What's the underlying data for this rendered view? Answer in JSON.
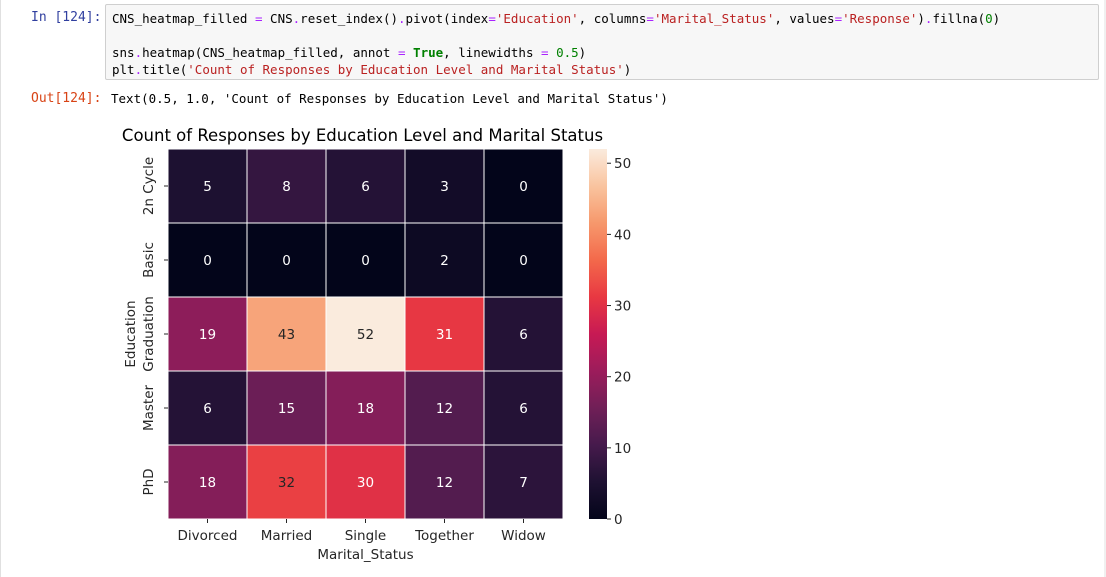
{
  "cell": {
    "in_prompt": "In [124]:",
    "out_prompt": "Out[124]:",
    "code_lines": [
      [
        {
          "t": "CNS_heatmap_filled ",
          "c": ""
        },
        {
          "t": "=",
          "c": "op"
        },
        {
          "t": " CNS",
          "c": ""
        },
        {
          "t": ".",
          "c": "op"
        },
        {
          "t": "reset_index()",
          "c": ""
        },
        {
          "t": ".",
          "c": "op"
        },
        {
          "t": "pivot(index",
          "c": ""
        },
        {
          "t": "=",
          "c": "op"
        },
        {
          "t": "'Education'",
          "c": "str"
        },
        {
          "t": ", columns",
          "c": ""
        },
        {
          "t": "=",
          "c": "op"
        },
        {
          "t": "'Marital_Status'",
          "c": "str"
        },
        {
          "t": ", values",
          "c": ""
        },
        {
          "t": "=",
          "c": "op"
        },
        {
          "t": "'Response'",
          "c": "str"
        },
        {
          "t": ")",
          "c": ""
        },
        {
          "t": ".",
          "c": "op"
        },
        {
          "t": "fillna(",
          "c": ""
        },
        {
          "t": "0",
          "c": "num"
        },
        {
          "t": ")",
          "c": ""
        }
      ],
      [],
      [
        {
          "t": "sns",
          "c": ""
        },
        {
          "t": ".",
          "c": "op"
        },
        {
          "t": "heatmap(CNS_heatmap_filled, annot ",
          "c": ""
        },
        {
          "t": "=",
          "c": "op"
        },
        {
          "t": " ",
          "c": ""
        },
        {
          "t": "True",
          "c": "kw"
        },
        {
          "t": ", linewidths ",
          "c": ""
        },
        {
          "t": "=",
          "c": "op"
        },
        {
          "t": " ",
          "c": ""
        },
        {
          "t": "0.5",
          "c": "num"
        },
        {
          "t": ")",
          "c": ""
        }
      ],
      [
        {
          "t": "plt",
          "c": ""
        },
        {
          "t": ".",
          "c": "op"
        },
        {
          "t": "title(",
          "c": ""
        },
        {
          "t": "'Count of Responses by Education Level and Marital Status'",
          "c": "str"
        },
        {
          "t": ")",
          "c": ""
        }
      ]
    ],
    "output_text": "Text(0.5, 1.0, 'Count of Responses by Education Level and Marital Status')"
  },
  "chart_data": {
    "type": "heatmap",
    "title": "Count of Responses by Education Level and Marital Status",
    "xlabel": "Marital_Status",
    "ylabel": "Education",
    "x_categories": [
      "Divorced",
      "Married",
      "Single",
      "Together",
      "Widow"
    ],
    "y_categories": [
      "2n Cycle",
      "Basic",
      "Graduation",
      "Master",
      "PhD"
    ],
    "values": [
      [
        5,
        8,
        6,
        3,
        0
      ],
      [
        0,
        0,
        0,
        2,
        0
      ],
      [
        19,
        43,
        52,
        31,
        6
      ],
      [
        6,
        15,
        18,
        12,
        6
      ],
      [
        18,
        32,
        30,
        12,
        7
      ]
    ],
    "colorbar": {
      "vmin": 0,
      "vmax": 52,
      "ticks": [
        0,
        10,
        20,
        30,
        40,
        50
      ],
      "colormap": "rocket"
    },
    "grid": false
  }
}
